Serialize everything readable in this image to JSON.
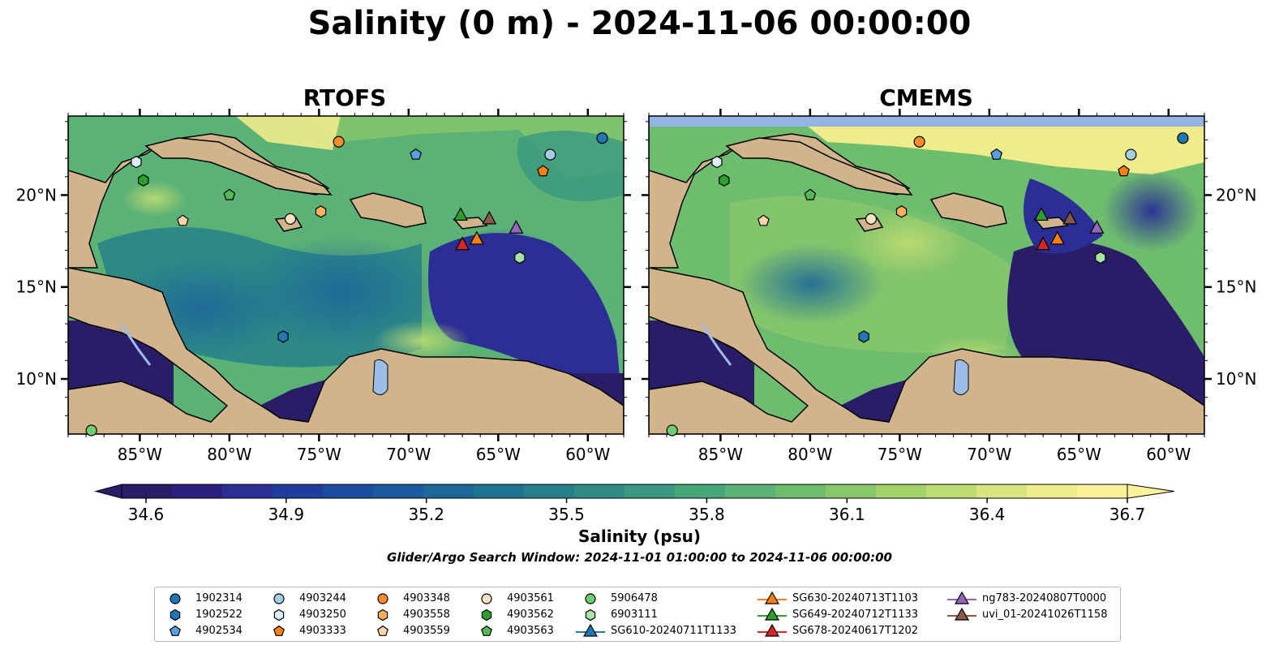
{
  "title": "Salinity (0 m) - 2024-11-06 00:00:00",
  "panels": [
    {
      "title": "RTOFS"
    },
    {
      "title": "CMEMS"
    }
  ],
  "colorbar": {
    "label": "Salinity (psu)",
    "ticks": [
      "34.6",
      "34.9",
      "35.2",
      "35.5",
      "35.8",
      "36.1",
      "36.4",
      "36.7"
    ],
    "colors": [
      "#2a1c66",
      "#2b2080",
      "#2a2e95",
      "#203d9e",
      "#1a4ca0",
      "#1c5a9e",
      "#1d6799",
      "#1f7392",
      "#268089",
      "#2f8c84",
      "#399980",
      "#48a67b",
      "#5bb276",
      "#6ebd6f",
      "#88c76b",
      "#a2d26a",
      "#bfdc72",
      "#dbe57d",
      "#efec8b",
      "#fbf199"
    ],
    "window_text": "Glider/Argo Search Window: 2024-11-01 01:00:00 to 2024-11-06 00:00:00"
  },
  "chart_data": {
    "type": "map",
    "xlim": [
      -89,
      -58
    ],
    "ylim": [
      7,
      24.3
    ],
    "x_ticks": [
      "85°W",
      "80°W",
      "75°W",
      "70°W",
      "65°W",
      "60°W"
    ],
    "x_tick_values": [
      -85,
      -80,
      -75,
      -70,
      -65,
      -60
    ],
    "y_ticks": [
      "10°N",
      "15°N",
      "20°N"
    ],
    "y_tick_values": [
      10,
      15,
      20
    ],
    "colors": {
      "land": "#d2b48c",
      "lakes": "#9bbde8",
      "missing": "#94b4e4"
    },
    "floats": [
      {
        "name": "1902314",
        "shape": "circle",
        "color": "#1f77b4",
        "lon": -59.2,
        "lat": 23.1
      },
      {
        "name": "1902522",
        "shape": "hexagon",
        "color": "#1f77b4",
        "lon": -77.0,
        "lat": 12.3
      },
      {
        "name": "4902534",
        "shape": "pentagon",
        "color": "#5aa0e0",
        "lon": -69.6,
        "lat": 22.2
      },
      {
        "name": "4903244",
        "shape": "circle",
        "color": "#a6cee3",
        "lon": -62.1,
        "lat": 22.2
      },
      {
        "name": "4903250",
        "shape": "hexagon",
        "color": "#ddeeff",
        "lon": -85.2,
        "lat": 21.8
      },
      {
        "name": "4903333",
        "shape": "pentagon",
        "color": "#ff7f0e",
        "lon": -62.5,
        "lat": 21.3
      },
      {
        "name": "4903348",
        "shape": "circle",
        "color": "#ff8c28",
        "lon": -73.9,
        "lat": 22.9
      },
      {
        "name": "4903558",
        "shape": "hexagon",
        "color": "#ffae5c",
        "lon": -74.9,
        "lat": 19.1
      },
      {
        "name": "4903559",
        "shape": "pentagon",
        "color": "#ffd5a8",
        "lon": -82.6,
        "lat": 18.6
      },
      {
        "name": "4903561",
        "shape": "circle",
        "color": "#ffe2c2",
        "lon": -76.6,
        "lat": 18.7
      },
      {
        "name": "4903562",
        "shape": "hexagon",
        "color": "#2ca02c",
        "lon": -84.8,
        "lat": 20.8
      },
      {
        "name": "4903563",
        "shape": "pentagon",
        "color": "#56b856",
        "lon": -80.0,
        "lat": 20.0
      },
      {
        "name": "5906478",
        "shape": "circle",
        "color": "#6fce6f",
        "lon": -87.7,
        "lat": 7.2
      },
      {
        "name": "6903111",
        "shape": "hexagon",
        "color": "#a9e2a4",
        "lon": -63.8,
        "lat": 16.6
      }
    ],
    "gliders": [
      {
        "name": "SG610-20240711T1133",
        "color": "#1f77b4",
        "lon": null,
        "lat": null
      },
      {
        "name": "SG630-20240713T1103",
        "color": "#ff7f0e",
        "lon": -66.2,
        "lat": 17.6
      },
      {
        "name": "SG649-20240712T1133",
        "color": "#2ca02c",
        "lon": -67.1,
        "lat": 18.9
      },
      {
        "name": "SG678-20240617T1202",
        "color": "#d62728",
        "lon": -67.0,
        "lat": 17.3
      },
      {
        "name": "ng783-20240807T0000",
        "color": "#9467bd",
        "lon": -64.0,
        "lat": 18.2
      },
      {
        "name": "uvi_01-20241026T1158",
        "color": "#8c564b",
        "lon": -65.5,
        "lat": 18.7
      }
    ]
  }
}
